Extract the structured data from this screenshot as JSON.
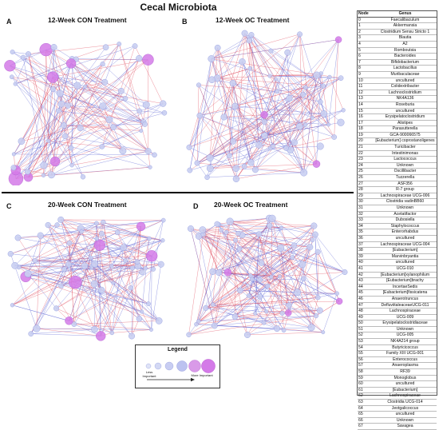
{
  "title": "Cecal Microbiota",
  "panels": [
    {
      "letter": "A",
      "title": "12-Week CON Treatment"
    },
    {
      "letter": "B",
      "title": "12-Week OC Treatment"
    },
    {
      "letter": "C",
      "title": "20-Week CON Treatment"
    },
    {
      "letter": "D",
      "title": "20-Week OC Treatment"
    }
  ],
  "legend": {
    "title": "Legend",
    "low": "Less Important",
    "high": "More Important"
  },
  "colors": {
    "node_fill": "#c9cff2",
    "node_hub": "#d47ae8",
    "edge_positive": "#e35a6a",
    "edge_negative": "#6a72d8"
  },
  "table": {
    "headers": {
      "node": "Node",
      "genus": "Genus"
    },
    "rows": [
      [
        "0",
        "Faecalibaculum"
      ],
      [
        "1",
        "Akkermansia"
      ],
      [
        "2",
        "Clostridium Sensu Stricto 1"
      ],
      [
        "3",
        "Blautia"
      ],
      [
        "4",
        "A2"
      ],
      [
        "5",
        "Romboutsia"
      ],
      [
        "6",
        "Bacteroides"
      ],
      [
        "7",
        "Bifidobacterium"
      ],
      [
        "8",
        "Lactobacillus"
      ],
      [
        "9",
        "Muribaculaceae"
      ],
      [
        "10",
        "uncultured"
      ],
      [
        "11",
        "Colidextribacter"
      ],
      [
        "12",
        "Lachnoclostridium"
      ],
      [
        "13",
        "NK4A136"
      ],
      [
        "14",
        "Roseburia"
      ],
      [
        "15",
        "uncultured"
      ],
      [
        "16",
        "Erysipelatoclostridium"
      ],
      [
        "17",
        "Alistipes"
      ],
      [
        "18",
        "Parasutterella"
      ],
      [
        "19",
        "GCA-900066575"
      ],
      [
        "20",
        "[Eubacterium] coprostanoligenes"
      ],
      [
        "21",
        "Turicibacter"
      ],
      [
        "22",
        "Intestinimonas"
      ],
      [
        "23",
        "Lactococcus"
      ],
      [
        "24",
        "Unknown"
      ],
      [
        "25",
        "Oscillibacter"
      ],
      [
        "26",
        "Tuzzerella"
      ],
      [
        "27",
        "ASF356"
      ],
      [
        "28",
        "R-7 group"
      ],
      [
        "29",
        "Lachnospiraceae UCG-006"
      ],
      [
        "30",
        "Clostridia vadinBB60"
      ],
      [
        "31",
        "Unknown"
      ],
      [
        "32",
        "Acetatifactor"
      ],
      [
        "33",
        "Dubosiella"
      ],
      [
        "34",
        "Staphylococcus"
      ],
      [
        "35",
        "Enterorhabdus"
      ],
      [
        "36",
        "uncultured"
      ],
      [
        "37",
        "Lachnospiraceae UCG-004"
      ],
      [
        "38",
        "[Eubacterium]"
      ],
      [
        "39",
        "Marvinbryantia"
      ],
      [
        "40",
        "uncultured"
      ],
      [
        "41",
        "UCG-010"
      ],
      [
        "42",
        "[Eubacterium]xylanophilum"
      ],
      [
        "43",
        "[Eubacterium]brachy"
      ],
      [
        "44",
        "IncertaeSedis"
      ],
      [
        "45",
        "[Eubacterium]fissicatena"
      ],
      [
        "46",
        "Anaerotruncus"
      ],
      [
        "47",
        "DefluviitaleaceaeUCG-011"
      ],
      [
        "48",
        "Lachnospiraceae"
      ],
      [
        "49",
        "UCG-009"
      ],
      [
        "50",
        "Erysipelatoclostridiaceae"
      ],
      [
        "51",
        "Unknown"
      ],
      [
        "52",
        "UCG-005"
      ],
      [
        "53",
        "NK4A214 group"
      ],
      [
        "54",
        "Butyricicoccus"
      ],
      [
        "55",
        "Family XIII UCG-001"
      ],
      [
        "56",
        "Enterococcus"
      ],
      [
        "57",
        "Anaeroplasma"
      ],
      [
        "58",
        "RF39"
      ],
      [
        "59",
        "Monoglobus"
      ],
      [
        "60",
        "uncultured"
      ],
      [
        "61",
        "[Eubacterium]"
      ],
      [
        "62",
        "Lachnospiraceae"
      ],
      [
        "63",
        "Clostridia UCG-014"
      ],
      [
        "64",
        "Jeotgalicoccus"
      ],
      [
        "65",
        "uncultured"
      ],
      [
        "66",
        "Unknown"
      ],
      [
        "67",
        "Savagea"
      ]
    ]
  }
}
